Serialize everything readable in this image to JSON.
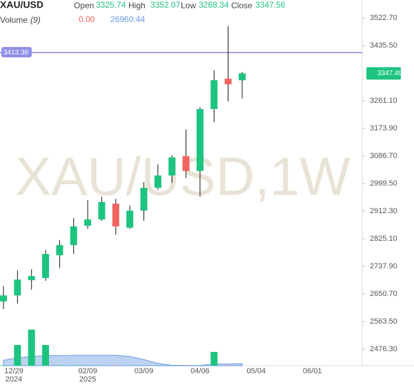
{
  "chart_data": {
    "type": "candlestick",
    "title": "XAU/USD",
    "watermark": "XAU/USD,1W",
    "legend": {
      "labels": [
        "Open",
        "High",
        "Low",
        "Close"
      ],
      "values": [
        "3325.74",
        "3352.07",
        "3268.34",
        "3347.56"
      ]
    },
    "volume_legend": {
      "name": "Volume",
      "period": "(9)",
      "value": "0.00",
      "ma": "26960.44"
    },
    "categories": [
      "12/29",
      null,
      null,
      null,
      null,
      null,
      "02/09",
      null,
      null,
      null,
      "03/09",
      null,
      null,
      null,
      "04/06",
      null,
      null,
      null,
      "05/04",
      null,
      null,
      null,
      "06/01"
    ],
    "year_labels": [
      "2024",
      null,
      null,
      null,
      null,
      null,
      "2025",
      null,
      null,
      null,
      null,
      null,
      null,
      null,
      null,
      null,
      null,
      null,
      null,
      null,
      null,
      null,
      null
    ],
    "open": [
      2627,
      2646,
      2694,
      2701,
      2773,
      2805,
      2866,
      2886,
      2936,
      2860,
      2914,
      2986,
      3025,
      3086,
      3039,
      3235,
      3331,
      3325.74,
      null,
      null,
      null,
      null,
      null
    ],
    "high": [
      2675,
      2725,
      2729,
      2790,
      2821,
      2890,
      2947,
      2958,
      2951,
      2930,
      3004,
      3060,
      3089,
      3170,
      3241,
      3357,
      3497,
      3352.07,
      null,
      null,
      null,
      null,
      null
    ],
    "low": [
      2603,
      2620,
      2664,
      2692,
      2733,
      2777,
      2856,
      2882,
      2838,
      2856,
      2882,
      2980,
      3002,
      3017,
      2958,
      3193,
      3259,
      3268.34,
      null,
      null,
      null,
      null,
      null
    ],
    "close": [
      2646,
      2696,
      2707,
      2777,
      2805,
      2864,
      2886,
      2941,
      2864,
      2914,
      2986,
      3025,
      3082,
      3039,
      3235,
      3326,
      3313,
      3347.56,
      null,
      null,
      null,
      null,
      null
    ],
    "volume": [
      5000,
      270000,
      470000,
      270000,
      5000,
      4000,
      3000,
      3000,
      3000,
      3000,
      2000,
      2000,
      2000,
      2000,
      3000,
      180000,
      3000,
      0,
      null,
      null,
      null,
      null,
      null
    ],
    "volume_ma": [
      72000,
      100000,
      120000,
      130000,
      130000,
      135000,
      135000,
      135000,
      135000,
      120000,
      80000,
      30000,
      5000,
      3000,
      3000,
      23000,
      23000,
      26960.44,
      null,
      null,
      null,
      null,
      null
    ],
    "up_color": "#1dc47f",
    "down_color": "#f2645f",
    "volume_ma_color": "#6b9be0",
    "ylim": [
      2424,
      3579.4
    ],
    "volume_ylim": [
      0,
      900000
    ],
    "yticks": [
      {
        "value": 2476.3,
        "label": "2476.30"
      },
      {
        "value": 2563.5,
        "label": "2563.50"
      },
      {
        "value": 2650.7,
        "label": "2650.70"
      },
      {
        "value": 2737.9,
        "label": "2737.90"
      },
      {
        "value": 2825.1,
        "label": "2825.10"
      },
      {
        "value": 2912.3,
        "label": "2912.30"
      },
      {
        "value": 2999.5,
        "label": "2999.50"
      },
      {
        "value": 3086.7,
        "label": "3086.70"
      },
      {
        "value": 3173.9,
        "label": "3173.90"
      },
      {
        "value": 3261.1,
        "label": "3261.10"
      },
      {
        "value": 3435.5,
        "label": "3435.50"
      },
      {
        "value": 3522.7,
        "label": "3522.70"
      }
    ],
    "price_line": {
      "value": 3413.36,
      "label": "3413.36",
      "color": "#5b5fd1"
    },
    "last_price": {
      "value": 3347.49,
      "label": "3347.49"
    },
    "grid": false
  }
}
